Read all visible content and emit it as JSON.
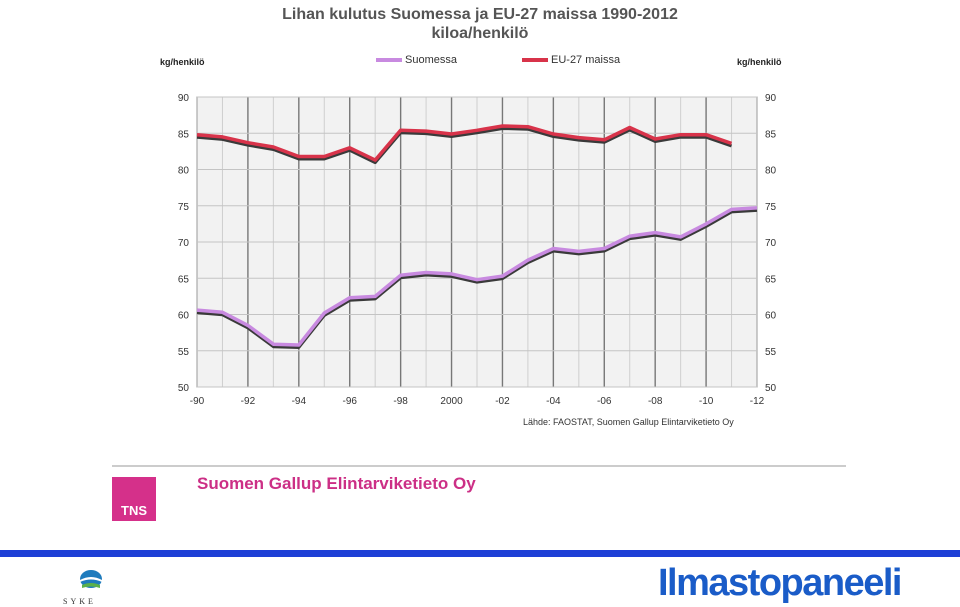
{
  "header": {
    "title_line1": "Lihan kulutus Suomessa ja EU-27 maissa 1990-2012",
    "title_line2": "kiloa/henkilö"
  },
  "units": {
    "left": "kg/henkilö",
    "right": "kg/henkilö"
  },
  "legend": {
    "suomessa": "Suomessa",
    "eu": "EU-27 maissa"
  },
  "source": "Lähde: FAOSTAT, Suomen Gallup Elintarviketieto Oy",
  "footer": {
    "company": "Suomen Gallup Elintarviketieto Oy",
    "tns_logo": "TNS",
    "syke_logo": "SYKE",
    "ilmastopaneeli_logo": "Ilmastopaneeli"
  },
  "colors": {
    "suomessa": "#c88ae0",
    "eu": "#d8334a",
    "grid_bg": "#f2f2f2",
    "accent_blue": "#1e3fd6",
    "tns": "#d5308a"
  },
  "chart_data": {
    "type": "line",
    "xlabel": "",
    "ylabel": "kg/henkilö",
    "ylim": [
      50,
      90
    ],
    "yticks": [
      50,
      55,
      60,
      65,
      70,
      75,
      80,
      85,
      90
    ],
    "xlim": [
      1990,
      2012
    ],
    "xticks": [
      1990,
      1992,
      1994,
      1996,
      1998,
      2000,
      2002,
      2004,
      2006,
      2008,
      2010,
      2012
    ],
    "xtick_labels": [
      "-90",
      "-92",
      "-94",
      "-96",
      "-98",
      "2000",
      "-02",
      "-04",
      "-06",
      "-08",
      "-10",
      "-12"
    ],
    "grid": true,
    "legend_position": "top",
    "series": [
      {
        "name": "Suomessa",
        "x": [
          1990,
          1991,
          1992,
          1993,
          1994,
          1995,
          1996,
          1997,
          1998,
          1999,
          2000,
          2001,
          2002,
          2003,
          2004,
          2005,
          2006,
          2007,
          2008,
          2009,
          2010,
          2011,
          2012
        ],
        "values": [
          60.6,
          60.3,
          58.5,
          55.9,
          55.8,
          60.2,
          62.3,
          62.5,
          65.4,
          65.8,
          65.6,
          64.8,
          65.3,
          67.5,
          69.1,
          68.7,
          69.1,
          70.8,
          71.3,
          70.7,
          72.5,
          74.5,
          74.7
        ]
      },
      {
        "name": "EU-27 maissa",
        "x": [
          1990,
          1991,
          1992,
          1993,
          1994,
          1995,
          1996,
          1997,
          1998,
          1999,
          2000,
          2001,
          2002,
          2003,
          2004,
          2005,
          2006,
          2007,
          2008,
          2009,
          2010,
          2011
        ],
        "values": [
          84.8,
          84.5,
          83.7,
          83.1,
          81.8,
          81.8,
          83.0,
          81.3,
          85.4,
          85.3,
          84.9,
          85.4,
          86.0,
          85.9,
          84.9,
          84.4,
          84.1,
          85.8,
          84.2,
          84.8,
          84.8,
          83.6
        ]
      }
    ]
  }
}
